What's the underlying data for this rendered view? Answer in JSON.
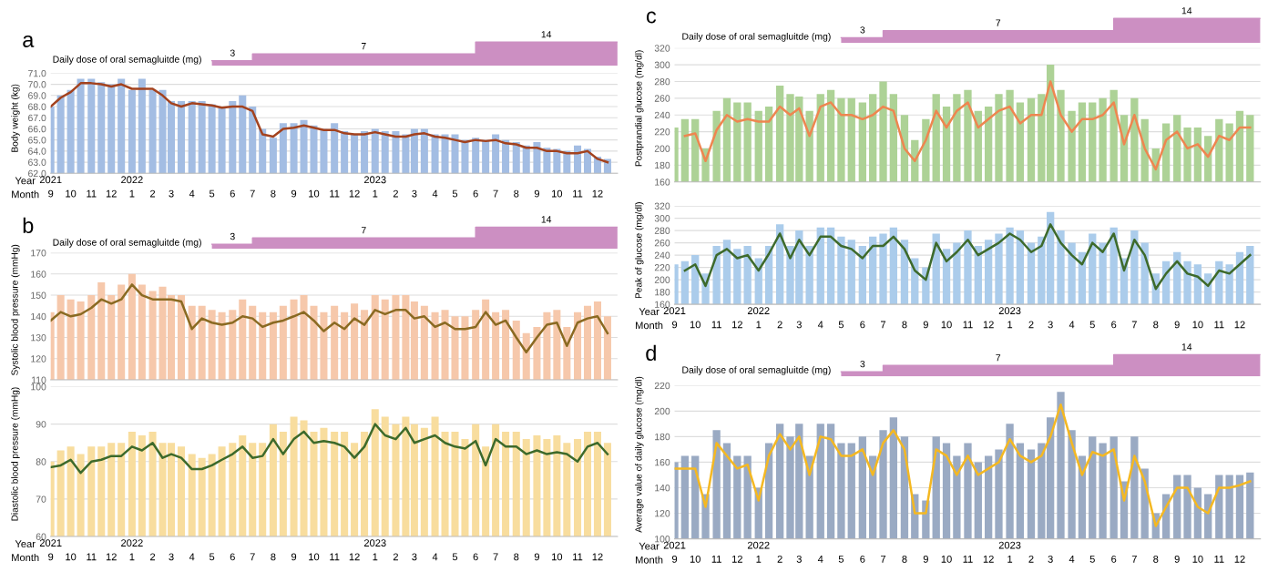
{
  "chart_data": [
    {
      "type": "area",
      "xlim": [
        "2021-09-01",
        "2023-12-31"
      ],
      "annotations": [
        "a",
        "Daily dose of oral semagluitde (mg)"
      ],
      "x": [
        "2022-05-01",
        "2022-06-01",
        "2022-07-01",
        "2022-07-01",
        "2022-12-15",
        "2023-06-01",
        "2023-06-01",
        "2023-09-15",
        "2023-12-31"
      ],
      "values": [
        3,
        3,
        3,
        7,
        7,
        7,
        14,
        14,
        14
      ],
      "value_labels": [
        null,
        "3",
        null,
        null,
        "7",
        null,
        null,
        "14",
        null
      ],
      "color": "#cc8fc2",
      "tick_labels": false
    },
    {
      "type": "bar",
      "ylabel": "Body weight (kg)",
      "xlabel": "Month",
      "x2label": "Year",
      "grid": "y",
      "xlim": [
        "2021-09-01",
        "2023-12-31"
      ],
      "ylim": [
        62,
        71
      ],
      "yticks": [
        {
          "value": 62,
          "label": "62.0"
        },
        {
          "value": 63,
          "label": "63.0"
        },
        {
          "value": 64,
          "label": "64.0"
        },
        {
          "value": 65,
          "label": "65.0"
        },
        {
          "value": 66,
          "label": "66.0"
        },
        {
          "value": 67,
          "label": "67.0"
        },
        {
          "value": 68,
          "label": "68.0"
        },
        {
          "value": 69,
          "label": "69.0"
        },
        {
          "value": 70,
          "label": "70.0"
        },
        {
          "value": 71,
          "label": "71.0"
        }
      ],
      "xticks": [
        {
          "value": "2021-09-01",
          "label": "9"
        },
        {
          "value": "2021-10-01",
          "label": "10"
        },
        {
          "value": "2021-11-01",
          "label": "11"
        },
        {
          "value": "2021-12-01",
          "label": "12"
        },
        {
          "value": "2022-01-01",
          "label": "1"
        },
        {
          "value": "2022-02-01",
          "label": "2"
        },
        {
          "value": "2022-03-01",
          "label": "3"
        },
        {
          "value": "2022-04-01",
          "label": "4"
        },
        {
          "value": "2022-05-01",
          "label": "5"
        },
        {
          "value": "2022-06-01",
          "label": "6"
        },
        {
          "value": "2022-07-01",
          "label": "7"
        },
        {
          "value": "2022-08-01",
          "label": "8"
        },
        {
          "value": "2022-09-01",
          "label": "9"
        },
        {
          "value": "2022-10-01",
          "label": "10"
        },
        {
          "value": "2022-11-01",
          "label": "11"
        },
        {
          "value": "2022-12-01",
          "label": "12"
        },
        {
          "value": "2023-01-01",
          "label": "1"
        },
        {
          "value": "2023-02-01",
          "label": "2"
        },
        {
          "value": "2023-03-01",
          "label": "3"
        },
        {
          "value": "2023-04-01",
          "label": "4"
        },
        {
          "value": "2023-05-01",
          "label": "5"
        },
        {
          "value": "2023-06-01",
          "label": "6"
        },
        {
          "value": "2023-07-01",
          "label": "7"
        },
        {
          "value": "2023-08-01",
          "label": "8"
        },
        {
          "value": "2023-09-01",
          "label": "9"
        },
        {
          "value": "2023-10-01",
          "label": "10"
        },
        {
          "value": "2023-11-01",
          "label": "11"
        },
        {
          "value": "2023-12-01",
          "label": "12"
        }
      ],
      "x2lim": [
        "2021-09-01",
        "2023-12-31"
      ],
      "x2ticks": [
        {
          "value": "2021-09-01",
          "label": "2021"
        },
        {
          "value": "2022-01-01",
          "label": "2022"
        },
        {
          "value": "2023-01-01",
          "label": "2023"
        }
      ],
      "x": [
        "2021-09-01",
        "2021-09-16",
        "2021-10-01",
        "2021-10-16",
        "2021-11-01",
        "2021-11-16",
        "2021-12-01",
        "2021-12-16",
        "2022-01-01",
        "2022-01-16",
        "2022-02-01",
        "2022-02-16",
        "2022-03-01",
        "2022-03-16",
        "2022-04-01",
        "2022-04-16",
        "2022-05-01",
        "2022-05-16",
        "2022-06-01",
        "2022-06-16",
        "2022-07-01",
        "2022-07-16",
        "2022-08-01",
        "2022-08-16",
        "2022-09-01",
        "2022-09-16",
        "2022-10-01",
        "2022-10-16",
        "2022-11-01",
        "2022-11-16",
        "2022-12-01",
        "2022-12-16",
        "2023-01-01",
        "2023-01-16",
        "2023-02-01",
        "2023-02-16",
        "2023-03-01",
        "2023-03-16",
        "2023-04-01",
        "2023-04-16",
        "2023-05-01",
        "2023-05-16",
        "2023-06-01",
        "2023-06-16",
        "2023-07-01",
        "2023-07-16",
        "2023-08-01",
        "2023-08-16",
        "2023-09-01",
        "2023-09-16",
        "2023-10-01",
        "2023-10-16",
        "2023-11-01",
        "2023-11-16",
        "2023-12-01",
        "2023-12-16"
      ],
      "series": [
        {
          "color": "#a3bde3",
          "values": [
            68.0,
            69.0,
            69.5,
            70.5,
            70.5,
            70.2,
            70.0,
            70.5,
            69.5,
            70.5,
            69.5,
            69.5,
            68.5,
            68.5,
            68.5,
            68.5,
            68.2,
            68.0,
            68.5,
            69.0,
            68.0,
            66.0,
            65.2,
            66.5,
            66.5,
            66.8,
            66.3,
            66.0,
            66.5,
            65.8,
            65.5,
            65.8,
            66.0,
            65.8,
            65.8,
            65.5,
            66.0,
            66.0,
            65.5,
            65.5,
            65.5,
            65.0,
            65.2,
            65.0,
            65.5,
            65.0,
            64.8,
            64.5,
            64.8,
            64.3,
            64.2,
            64.0,
            64.5,
            64.2,
            63.5,
            63.3
          ]
        },
        {
          "type": "line",
          "color": "#a3421e",
          "values": [
            68.0,
            68.8,
            69.3,
            70.1,
            70.1,
            70.0,
            69.8,
            70.0,
            69.6,
            69.6,
            69.6,
            69.0,
            68.3,
            68.0,
            68.3,
            68.2,
            68.1,
            67.9,
            68.0,
            68.0,
            67.6,
            65.5,
            65.3,
            66.0,
            66.1,
            66.3,
            66.1,
            65.9,
            65.9,
            65.6,
            65.5,
            65.5,
            65.7,
            65.5,
            65.3,
            65.3,
            65.5,
            65.6,
            65.3,
            65.2,
            65.0,
            64.8,
            65.0,
            64.9,
            65.0,
            64.7,
            64.6,
            64.3,
            64.3,
            64.0,
            64.0,
            63.8,
            63.8,
            64.0,
            63.3,
            63.0
          ]
        }
      ]
    },
    {
      "type": "area",
      "xlim": [
        "2021-09-01",
        "2023-12-31"
      ],
      "annotations": [
        "b",
        "Daily dose of oral semagluitde (mg)"
      ],
      "x": [
        "2022-05-01",
        "2022-06-01",
        "2022-07-01",
        "2022-07-01",
        "2022-12-15",
        "2023-06-01",
        "2023-06-01",
        "2023-09-15",
        "2023-12-31"
      ],
      "values": [
        3,
        3,
        3,
        7,
        7,
        7,
        14,
        14,
        14
      ],
      "value_labels": [
        null,
        "3",
        null,
        null,
        "7",
        null,
        null,
        "14",
        null
      ],
      "color": "#cc8fc2",
      "tick_labels": false
    },
    {
      "type": "bar",
      "ylabel": "Systolic blood pressure (mmHg)",
      "grid": "y",
      "tick_labels": "y",
      "xlim": [
        "2021-09-01",
        "2023-12-31"
      ],
      "ylim": [
        110,
        170
      ],
      "yticks": [
        110,
        120,
        130,
        140,
        150,
        160,
        170
      ],
      "x": [
        "2021-09-01",
        "2021-09-16",
        "2021-10-01",
        "2021-10-16",
        "2021-11-01",
        "2021-11-16",
        "2021-12-01",
        "2021-12-16",
        "2022-01-01",
        "2022-01-16",
        "2022-02-01",
        "2022-02-16",
        "2022-03-01",
        "2022-03-16",
        "2022-04-01",
        "2022-04-16",
        "2022-05-01",
        "2022-05-16",
        "2022-06-01",
        "2022-06-16",
        "2022-07-01",
        "2022-07-16",
        "2022-08-01",
        "2022-08-16",
        "2022-09-01",
        "2022-09-16",
        "2022-10-01",
        "2022-10-16",
        "2022-11-01",
        "2022-11-16",
        "2022-12-01",
        "2022-12-16",
        "2023-01-01",
        "2023-01-16",
        "2023-02-01",
        "2023-02-16",
        "2023-03-01",
        "2023-03-16",
        "2023-04-01",
        "2023-04-16",
        "2023-05-01",
        "2023-05-16",
        "2023-06-01",
        "2023-06-16",
        "2023-07-01",
        "2023-07-16",
        "2023-08-01",
        "2023-08-16",
        "2023-09-01",
        "2023-09-16",
        "2023-10-01",
        "2023-10-16",
        "2023-11-01",
        "2023-11-16",
        "2023-12-01",
        "2023-12-16"
      ],
      "series": [
        {
          "color": "#f6c8ab",
          "values": [
            142,
            150,
            148,
            147,
            150,
            156,
            150,
            155,
            160,
            155,
            152,
            154,
            150,
            150,
            145,
            145,
            143,
            142,
            143,
            148,
            145,
            142,
            142,
            145,
            148,
            150,
            145,
            142,
            145,
            142,
            146,
            143,
            150,
            148,
            150,
            150,
            147,
            145,
            142,
            143,
            140,
            140,
            143,
            148,
            142,
            143,
            138,
            132,
            135,
            142,
            143,
            135,
            142,
            145,
            147,
            140
          ]
        },
        {
          "type": "line",
          "color": "#8a6a22",
          "values": [
            138,
            142,
            140,
            141,
            144,
            148,
            146,
            148,
            155,
            150,
            148,
            148,
            148,
            147,
            134,
            139,
            137,
            136,
            137,
            140,
            139,
            135,
            137,
            138,
            140,
            142,
            138,
            133,
            137,
            134,
            139,
            136,
            143,
            141,
            143,
            143,
            139,
            140,
            135,
            137,
            134,
            134,
            135,
            142,
            136,
            138,
            130,
            123,
            130,
            136,
            137,
            126,
            137,
            139,
            140,
            132
          ]
        }
      ]
    },
    {
      "type": "bar",
      "ylabel": "Diastolic blood pressure (mmHg)",
      "xlabel": "Month",
      "x2label": "Year",
      "grid": "y",
      "xlim": [
        "2021-09-01",
        "2023-12-31"
      ],
      "ylim": [
        60,
        100
      ],
      "yticks": [
        60,
        70,
        80,
        90,
        100
      ],
      "xticks": [
        {
          "value": "2021-09-01",
          "label": "9"
        },
        {
          "value": "2021-10-01",
          "label": "10"
        },
        {
          "value": "2021-11-01",
          "label": "11"
        },
        {
          "value": "2021-12-01",
          "label": "12"
        },
        {
          "value": "2022-01-01",
          "label": "1"
        },
        {
          "value": "2022-02-01",
          "label": "2"
        },
        {
          "value": "2022-03-01",
          "label": "3"
        },
        {
          "value": "2022-04-01",
          "label": "4"
        },
        {
          "value": "2022-05-01",
          "label": "5"
        },
        {
          "value": "2022-06-01",
          "label": "6"
        },
        {
          "value": "2022-07-01",
          "label": "7"
        },
        {
          "value": "2022-08-01",
          "label": "8"
        },
        {
          "value": "2022-09-01",
          "label": "9"
        },
        {
          "value": "2022-10-01",
          "label": "10"
        },
        {
          "value": "2022-11-01",
          "label": "11"
        },
        {
          "value": "2022-12-01",
          "label": "12"
        },
        {
          "value": "2023-01-01",
          "label": "1"
        },
        {
          "value": "2023-02-01",
          "label": "2"
        },
        {
          "value": "2023-03-01",
          "label": "3"
        },
        {
          "value": "2023-04-01",
          "label": "4"
        },
        {
          "value": "2023-05-01",
          "label": "5"
        },
        {
          "value": "2023-06-01",
          "label": "6"
        },
        {
          "value": "2023-07-01",
          "label": "7"
        },
        {
          "value": "2023-08-01",
          "label": "8"
        },
        {
          "value": "2023-09-01",
          "label": "9"
        },
        {
          "value": "2023-10-01",
          "label": "10"
        },
        {
          "value": "2023-11-01",
          "label": "11"
        },
        {
          "value": "2023-12-01",
          "label": "12"
        }
      ],
      "x2lim": [
        "2021-09-01",
        "2023-12-31"
      ],
      "x2ticks": [
        {
          "value": "2021-09-01",
          "label": "2021"
        },
        {
          "value": "2022-01-01",
          "label": "2022"
        },
        {
          "value": "2023-01-01",
          "label": "2023"
        }
      ],
      "x": [
        "2021-09-01",
        "2021-09-16",
        "2021-10-01",
        "2021-10-16",
        "2021-11-01",
        "2021-11-16",
        "2021-12-01",
        "2021-12-16",
        "2022-01-01",
        "2022-01-16",
        "2022-02-01",
        "2022-02-16",
        "2022-03-01",
        "2022-03-16",
        "2022-04-01",
        "2022-04-16",
        "2022-05-01",
        "2022-05-16",
        "2022-06-01",
        "2022-06-16",
        "2022-07-01",
        "2022-07-16",
        "2022-08-01",
        "2022-08-16",
        "2022-09-01",
        "2022-09-16",
        "2022-10-01",
        "2022-10-16",
        "2022-11-01",
        "2022-11-16",
        "2022-12-01",
        "2022-12-16",
        "2023-01-01",
        "2023-01-16",
        "2023-02-01",
        "2023-02-16",
        "2023-03-01",
        "2023-03-16",
        "2023-04-01",
        "2023-04-16",
        "2023-05-01",
        "2023-05-16",
        "2023-06-01",
        "2023-06-16",
        "2023-07-01",
        "2023-07-16",
        "2023-08-01",
        "2023-08-16",
        "2023-09-01",
        "2023-09-16",
        "2023-10-01",
        "2023-10-16",
        "2023-11-01",
        "2023-11-16",
        "2023-12-01",
        "2023-12-16"
      ],
      "series": [
        {
          "color": "#f8dd9e",
          "values": [
            80,
            83,
            84,
            82,
            84,
            84,
            85,
            85,
            88,
            87,
            88,
            85,
            85,
            84,
            82,
            81,
            82,
            84,
            85,
            87,
            85,
            85,
            90,
            88,
            92,
            91,
            88,
            89,
            88,
            88,
            85,
            88,
            94,
            92,
            90,
            92,
            90,
            89,
            92,
            88,
            88,
            86,
            90,
            84,
            90,
            88,
            88,
            86,
            87,
            86,
            87,
            85,
            86,
            88,
            88,
            85
          ]
        },
        {
          "type": "line",
          "color": "#3d6a2b",
          "values": [
            78.5,
            79,
            80.5,
            77,
            80,
            80.5,
            81.5,
            81.5,
            84,
            83,
            85,
            81,
            82,
            81,
            78,
            78,
            79,
            80.5,
            82,
            84,
            81,
            81.5,
            86,
            82,
            86,
            88,
            85,
            85.5,
            85,
            84,
            81,
            84,
            90,
            87,
            86,
            89,
            85,
            86,
            87,
            85,
            84,
            83.5,
            85.5,
            79,
            86,
            84,
            84,
            82,
            83,
            82,
            82.5,
            82,
            80,
            84,
            85,
            82
          ]
        }
      ]
    },
    {
      "type": "area",
      "xlim": [
        "2021-09-01",
        "2023-12-31"
      ],
      "annotations": [
        "c",
        "Daily dose of oral semagluitde (mg)"
      ],
      "x": [
        "2022-05-01",
        "2022-06-01",
        "2022-07-01",
        "2022-07-01",
        "2022-12-15",
        "2023-06-01",
        "2023-06-01",
        "2023-09-15",
        "2023-12-31"
      ],
      "values": [
        3,
        3,
        3,
        7,
        7,
        7,
        14,
        14,
        14
      ],
      "value_labels": [
        null,
        "3",
        null,
        null,
        "7",
        null,
        null,
        "14",
        null
      ],
      "color": "#cc8fc2",
      "tick_labels": false
    },
    {
      "type": "bar",
      "ylabel": "Postprandial glucose (mg/dl)",
      "grid": "y",
      "tick_labels": "y",
      "xlim": [
        "2021-09-01",
        "2023-12-31"
      ],
      "ylim": [
        160,
        320
      ],
      "yticks": [
        160,
        180,
        200,
        220,
        240,
        260,
        280,
        300,
        320
      ],
      "x": [
        "2021-09-01",
        "2021-09-16",
        "2021-10-01",
        "2021-10-16",
        "2021-11-01",
        "2021-11-16",
        "2021-12-01",
        "2021-12-16",
        "2022-01-01",
        "2022-01-16",
        "2022-02-01",
        "2022-02-16",
        "2022-03-01",
        "2022-03-16",
        "2022-04-01",
        "2022-04-16",
        "2022-05-01",
        "2022-05-16",
        "2022-06-01",
        "2022-06-16",
        "2022-07-01",
        "2022-07-16",
        "2022-08-01",
        "2022-08-16",
        "2022-09-01",
        "2022-09-16",
        "2022-10-01",
        "2022-10-16",
        "2022-11-01",
        "2022-11-16",
        "2022-12-01",
        "2022-12-16",
        "2023-01-01",
        "2023-01-16",
        "2023-02-01",
        "2023-02-16",
        "2023-03-01",
        "2023-03-16",
        "2023-04-01",
        "2023-04-16",
        "2023-05-01",
        "2023-05-16",
        "2023-06-01",
        "2023-06-16",
        "2023-07-01",
        "2023-07-16",
        "2023-08-01",
        "2023-08-16",
        "2023-09-01",
        "2023-09-16",
        "2023-10-01",
        "2023-10-16",
        "2023-11-01",
        "2023-11-16",
        "2023-12-01",
        "2023-12-16"
      ],
      "series": [
        {
          "color": "#add296",
          "values": [
            225,
            235,
            235,
            200,
            245,
            260,
            255,
            255,
            245,
            250,
            275,
            265,
            262,
            245,
            265,
            270,
            260,
            260,
            255,
            265,
            280,
            265,
            240,
            210,
            235,
            265,
            250,
            265,
            270,
            245,
            250,
            265,
            270,
            255,
            260,
            265,
            300,
            270,
            245,
            255,
            255,
            260,
            270,
            240,
            260,
            235,
            200,
            230,
            240,
            225,
            225,
            215,
            235,
            230,
            245,
            240
          ]
        },
        {
          "type": "line",
          "color": "#ee8650",
          "values": [
            null,
            215,
            218,
            185,
            222,
            240,
            232,
            235,
            232,
            232,
            250,
            240,
            248,
            215,
            250,
            255,
            240,
            240,
            235,
            240,
            250,
            245,
            200,
            185,
            210,
            245,
            225,
            245,
            255,
            225,
            235,
            245,
            250,
            230,
            240,
            240,
            280,
            240,
            220,
            235,
            235,
            240,
            255,
            205,
            240,
            200,
            175,
            210,
            220,
            200,
            205,
            190,
            215,
            210,
            225,
            225
          ]
        }
      ]
    },
    {
      "type": "bar",
      "ylabel": "Peak of glucose (mg/dl)",
      "xlabel": "Month",
      "x2label": "Year",
      "grid": "y",
      "xlim": [
        "2021-09-01",
        "2023-12-31"
      ],
      "ylim": [
        160,
        320
      ],
      "yticks": [
        160,
        180,
        200,
        220,
        240,
        260,
        280,
        300,
        320
      ],
      "xticks": [
        {
          "value": "2021-09-01",
          "label": "9"
        },
        {
          "value": "2021-10-01",
          "label": "10"
        },
        {
          "value": "2021-11-01",
          "label": "11"
        },
        {
          "value": "2021-12-01",
          "label": "12"
        },
        {
          "value": "2022-01-01",
          "label": "1"
        },
        {
          "value": "2022-02-01",
          "label": "2"
        },
        {
          "value": "2022-03-01",
          "label": "3"
        },
        {
          "value": "2022-04-01",
          "label": "4"
        },
        {
          "value": "2022-05-01",
          "label": "5"
        },
        {
          "value": "2022-06-01",
          "label": "6"
        },
        {
          "value": "2022-07-01",
          "label": "7"
        },
        {
          "value": "2022-08-01",
          "label": "8"
        },
        {
          "value": "2022-09-01",
          "label": "9"
        },
        {
          "value": "2022-10-01",
          "label": "10"
        },
        {
          "value": "2022-11-01",
          "label": "11"
        },
        {
          "value": "2022-12-01",
          "label": "12"
        },
        {
          "value": "2023-01-01",
          "label": "1"
        },
        {
          "value": "2023-02-01",
          "label": "2"
        },
        {
          "value": "2023-03-01",
          "label": "3"
        },
        {
          "value": "2023-04-01",
          "label": "4"
        },
        {
          "value": "2023-05-01",
          "label": "5"
        },
        {
          "value": "2023-06-01",
          "label": "6"
        },
        {
          "value": "2023-07-01",
          "label": "7"
        },
        {
          "value": "2023-08-01",
          "label": "8"
        },
        {
          "value": "2023-09-01",
          "label": "9"
        },
        {
          "value": "2023-10-01",
          "label": "10"
        },
        {
          "value": "2023-11-01",
          "label": "11"
        },
        {
          "value": "2023-12-01",
          "label": "12"
        }
      ],
      "x2lim": [
        "2021-09-01",
        "2023-12-31"
      ],
      "x2ticks": [
        {
          "value": "2021-09-01",
          "label": "2021"
        },
        {
          "value": "2022-01-01",
          "label": "2022"
        },
        {
          "value": "2023-01-01",
          "label": "2023"
        }
      ],
      "x": [
        "2021-09-01",
        "2021-09-16",
        "2021-10-01",
        "2021-10-16",
        "2021-11-01",
        "2021-11-16",
        "2021-12-01",
        "2021-12-16",
        "2022-01-01",
        "2022-01-16",
        "2022-02-01",
        "2022-02-16",
        "2022-03-01",
        "2022-03-16",
        "2022-04-01",
        "2022-04-16",
        "2022-05-01",
        "2022-05-16",
        "2022-06-01",
        "2022-06-16",
        "2022-07-01",
        "2022-07-16",
        "2022-08-01",
        "2022-08-16",
        "2022-09-01",
        "2022-09-16",
        "2022-10-01",
        "2022-10-16",
        "2022-11-01",
        "2022-11-16",
        "2022-12-01",
        "2022-12-16",
        "2023-01-01",
        "2023-01-16",
        "2023-02-01",
        "2023-02-16",
        "2023-03-01",
        "2023-03-16",
        "2023-04-01",
        "2023-04-16",
        "2023-05-01",
        "2023-05-16",
        "2023-06-01",
        "2023-06-16",
        "2023-07-01",
        "2023-07-16",
        "2023-08-01",
        "2023-08-16",
        "2023-09-01",
        "2023-09-16",
        "2023-10-01",
        "2023-10-16",
        "2023-11-01",
        "2023-11-16",
        "2023-12-01",
        "2023-12-16"
      ],
      "series": [
        {
          "color": "#abcceb",
          "values": [
            225,
            230,
            240,
            210,
            255,
            265,
            250,
            255,
            235,
            255,
            290,
            255,
            280,
            255,
            285,
            285,
            270,
            265,
            255,
            270,
            275,
            285,
            265,
            235,
            220,
            275,
            250,
            260,
            280,
            255,
            265,
            275,
            285,
            280,
            260,
            270,
            310,
            280,
            260,
            245,
            275,
            260,
            285,
            235,
            280,
            260,
            210,
            230,
            245,
            230,
            225,
            210,
            230,
            225,
            245,
            255
          ]
        },
        {
          "type": "line",
          "color": "#3d6a2b",
          "values": [
            null,
            215,
            225,
            190,
            240,
            250,
            235,
            240,
            215,
            242,
            275,
            235,
            265,
            240,
            270,
            270,
            255,
            250,
            235,
            255,
            255,
            270,
            250,
            215,
            200,
            260,
            230,
            245,
            265,
            240,
            250,
            260,
            275,
            265,
            245,
            255,
            290,
            260,
            240,
            225,
            260,
            245,
            275,
            215,
            265,
            240,
            185,
            210,
            230,
            210,
            205,
            190,
            215,
            210,
            225,
            240
          ]
        }
      ]
    },
    {
      "type": "area",
      "xlim": [
        "2021-09-01",
        "2023-12-31"
      ],
      "annotations": [
        "d",
        "Daily dose of oral semagluitde (mg)"
      ],
      "x": [
        "2022-05-01",
        "2022-06-01",
        "2022-07-01",
        "2022-07-01",
        "2022-12-15",
        "2023-06-01",
        "2023-06-01",
        "2023-09-15",
        "2023-12-31"
      ],
      "values": [
        3,
        3,
        3,
        7,
        7,
        7,
        14,
        14,
        14
      ],
      "value_labels": [
        null,
        "3",
        null,
        null,
        "7",
        null,
        null,
        "14",
        null
      ],
      "color": "#cc8fc2",
      "tick_labels": false
    },
    {
      "type": "bar",
      "ylabel": "Average value of daily glucose (mg/dl)",
      "xlabel": "Month",
      "x2label": "Year",
      "grid": "y",
      "xlim": [
        "2021-09-01",
        "2023-12-31"
      ],
      "ylim": [
        100,
        220
      ],
      "yticks": [
        100,
        120,
        140,
        160,
        180,
        200,
        220
      ],
      "xticks": [
        {
          "value": "2021-09-01",
          "label": "9"
        },
        {
          "value": "2021-10-01",
          "label": "10"
        },
        {
          "value": "2021-11-01",
          "label": "11"
        },
        {
          "value": "2021-12-01",
          "label": "12"
        },
        {
          "value": "2022-01-01",
          "label": "1"
        },
        {
          "value": "2022-02-01",
          "label": "2"
        },
        {
          "value": "2022-03-01",
          "label": "3"
        },
        {
          "value": "2022-04-01",
          "label": "4"
        },
        {
          "value": "2022-05-01",
          "label": "5"
        },
        {
          "value": "2022-06-01",
          "label": "6"
        },
        {
          "value": "2022-07-01",
          "label": "7"
        },
        {
          "value": "2022-08-01",
          "label": "8"
        },
        {
          "value": "2022-09-01",
          "label": "9"
        },
        {
          "value": "2022-10-01",
          "label": "10"
        },
        {
          "value": "2022-11-01",
          "label": "11"
        },
        {
          "value": "2022-12-01",
          "label": "12"
        },
        {
          "value": "2023-01-01",
          "label": "1"
        },
        {
          "value": "2023-02-01",
          "label": "2"
        },
        {
          "value": "2023-03-01",
          "label": "3"
        },
        {
          "value": "2023-04-01",
          "label": "4"
        },
        {
          "value": "2023-05-01",
          "label": "5"
        },
        {
          "value": "2023-06-01",
          "label": "6"
        },
        {
          "value": "2023-07-01",
          "label": "7"
        },
        {
          "value": "2023-08-01",
          "label": "8"
        },
        {
          "value": "2023-09-01",
          "label": "9"
        },
        {
          "value": "2023-10-01",
          "label": "10"
        },
        {
          "value": "2023-11-01",
          "label": "11"
        },
        {
          "value": "2023-12-01",
          "label": "12"
        }
      ],
      "x2lim": [
        "2021-09-01",
        "2023-12-31"
      ],
      "x2ticks": [
        {
          "value": "2021-09-01",
          "label": "2021"
        },
        {
          "value": "2022-01-01",
          "label": "2022"
        },
        {
          "value": "2023-01-01",
          "label": "2023"
        }
      ],
      "x": [
        "2021-09-01",
        "2021-09-16",
        "2021-10-01",
        "2021-10-16",
        "2021-11-01",
        "2021-11-16",
        "2021-12-01",
        "2021-12-16",
        "2022-01-01",
        "2022-01-16",
        "2022-02-01",
        "2022-02-16",
        "2022-03-01",
        "2022-03-16",
        "2022-04-01",
        "2022-04-16",
        "2022-05-01",
        "2022-05-16",
        "2022-06-01",
        "2022-06-16",
        "2022-07-01",
        "2022-07-16",
        "2022-08-01",
        "2022-08-16",
        "2022-09-01",
        "2022-09-16",
        "2022-10-01",
        "2022-10-16",
        "2022-11-01",
        "2022-11-16",
        "2022-12-01",
        "2022-12-16",
        "2023-01-01",
        "2023-01-16",
        "2023-02-01",
        "2023-02-16",
        "2023-03-01",
        "2023-03-16",
        "2023-04-01",
        "2023-04-16",
        "2023-05-01",
        "2023-05-16",
        "2023-06-01",
        "2023-06-16",
        "2023-07-01",
        "2023-07-16",
        "2023-08-01",
        "2023-08-16",
        "2023-09-01",
        "2023-09-16",
        "2023-10-01",
        "2023-10-16",
        "2023-11-01",
        "2023-11-16",
        "2023-12-01",
        "2023-12-16"
      ],
      "series": [
        {
          "color": "#9aaac3",
          "values": [
            160,
            165,
            165,
            135,
            185,
            175,
            165,
            165,
            140,
            175,
            190,
            180,
            190,
            165,
            190,
            190,
            175,
            175,
            180,
            165,
            185,
            195,
            180,
            135,
            130,
            180,
            175,
            165,
            175,
            160,
            165,
            170,
            190,
            175,
            170,
            175,
            195,
            215,
            185,
            165,
            180,
            175,
            180,
            145,
            180,
            155,
            120,
            135,
            150,
            150,
            140,
            135,
            150,
            150,
            150,
            152
          ]
        },
        {
          "type": "line",
          "color": "#f4b822",
          "values": [
            155,
            155,
            155,
            125,
            175,
            165,
            155,
            158,
            130,
            165,
            182,
            170,
            180,
            150,
            180,
            178,
            165,
            165,
            170,
            150,
            175,
            185,
            170,
            120,
            120,
            170,
            165,
            150,
            165,
            150,
            155,
            160,
            178,
            165,
            160,
            165,
            180,
            205,
            175,
            150,
            168,
            165,
            170,
            130,
            165,
            145,
            110,
            125,
            140,
            140,
            125,
            120,
            140,
            140,
            142,
            145
          ]
        }
      ]
    }
  ]
}
